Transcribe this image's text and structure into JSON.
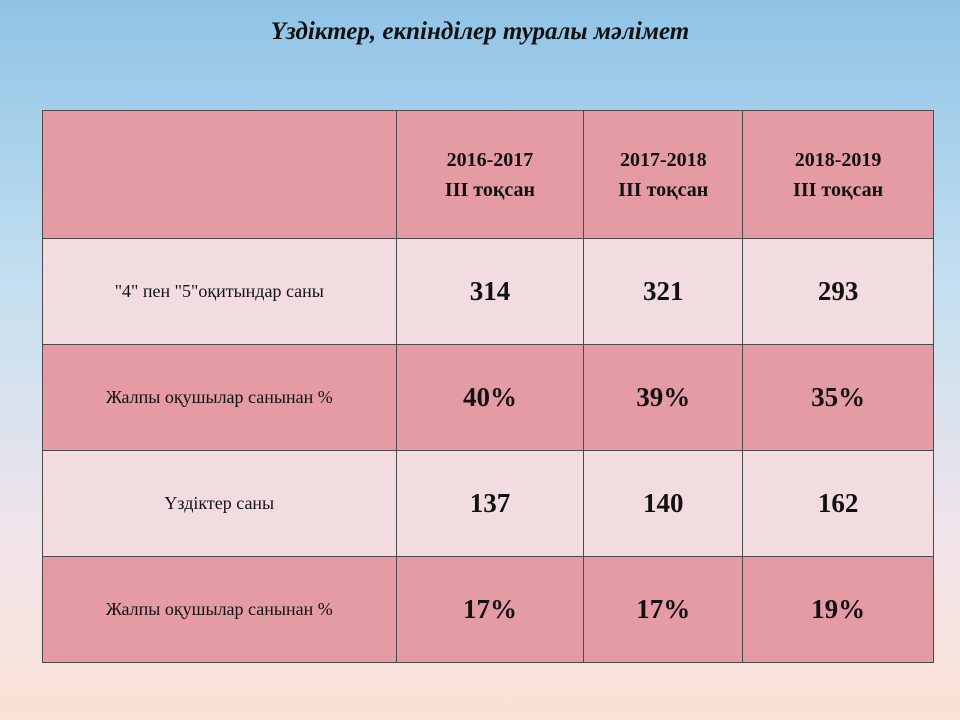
{
  "title": "Үздіктер,  екпінділер  туралы мәлімет",
  "table": {
    "header": [
      [
        "2016-2017",
        "ІІІ тоқсан"
      ],
      [
        "2017-2018",
        "ІІІ тоқсан"
      ],
      [
        "2018-2019",
        "ІІІ тоқсан"
      ]
    ],
    "rows": [
      [
        "\"4\" пен \"5\"оқитындар саны",
        "314",
        "321",
        "293"
      ],
      [
        "Жалпы оқушылар санынан %",
        "40%",
        "39%",
        "35%"
      ],
      [
        "Үздіктер саны",
        "137",
        "140",
        "162"
      ],
      [
        "Жалпы оқушылар санынан %",
        "17%",
        "17%",
        "19%"
      ]
    ]
  }
}
